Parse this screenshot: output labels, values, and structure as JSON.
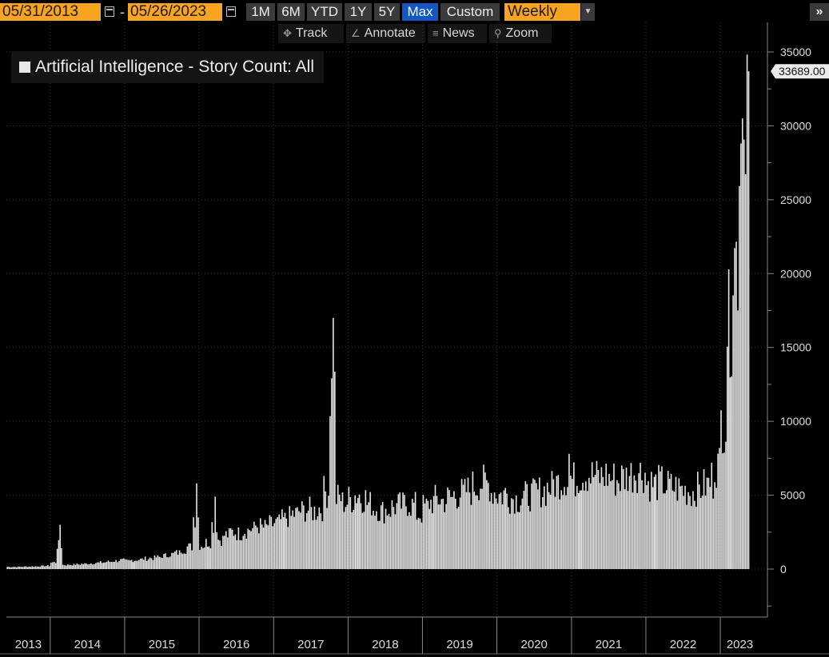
{
  "toolbar": {
    "start_date": "05/31/2013",
    "end_date": "05/26/2023",
    "separator": "-",
    "ranges": [
      "1M",
      "6M",
      "YTD",
      "1Y",
      "5Y",
      "Max",
      "Custom"
    ],
    "active_range": "Max",
    "frequency": "Weekly",
    "more_label": "»"
  },
  "subtoolbar": {
    "track": "Track",
    "annotate": "Annotate",
    "news": "News",
    "zoom": "Zoom"
  },
  "colors": {
    "accent": "#f7a51e",
    "active": "#1356c4",
    "bars": "#e6e6e6",
    "background": "#000000"
  },
  "chart_data": {
    "type": "bar",
    "series_name": "Artificial Intelligence - Story Count: All",
    "frequency": "weekly",
    "ylim": [
      -3000,
      36000
    ],
    "yticks": [
      0,
      5000,
      10000,
      15000,
      20000,
      25000,
      30000,
      35000
    ],
    "last_value_label": "33689.00",
    "years": [
      "2013",
      "2014",
      "2015",
      "2016",
      "2017",
      "2018",
      "2019",
      "2020",
      "2021",
      "2022",
      "2023"
    ],
    "grid": true,
    "legend": "top-left",
    "monthly_values": [
      [
        "2013-06",
        150
      ],
      [
        "2013-07",
        150
      ],
      [
        "2013-08",
        160
      ],
      [
        "2013-09",
        170
      ],
      [
        "2013-10",
        180
      ],
      [
        "2013-11",
        200
      ],
      [
        "2013-12",
        220
      ],
      [
        "2014-01",
        450
      ],
      [
        "2014-02",
        1600
      ],
      [
        "2014-03",
        280
      ],
      [
        "2014-04",
        300
      ],
      [
        "2014-05",
        320
      ],
      [
        "2014-06",
        350
      ],
      [
        "2014-07",
        380
      ],
      [
        "2014-08",
        420
      ],
      [
        "2014-09",
        450
      ],
      [
        "2014-10",
        500
      ],
      [
        "2014-11",
        550
      ],
      [
        "2014-12",
        600
      ],
      [
        "2015-01",
        550
      ],
      [
        "2015-02",
        600
      ],
      [
        "2015-03",
        650
      ],
      [
        "2015-04",
        700
      ],
      [
        "2015-05",
        750
      ],
      [
        "2015-06",
        800
      ],
      [
        "2015-07",
        900
      ],
      [
        "2015-08",
        1000
      ],
      [
        "2015-09",
        1100
      ],
      [
        "2015-10",
        1300
      ],
      [
        "2015-11",
        1500
      ],
      [
        "2015-12",
        3500
      ],
      [
        "2016-01",
        1600
      ],
      [
        "2016-02",
        1800
      ],
      [
        "2016-03",
        3000
      ],
      [
        "2016-04",
        2000
      ],
      [
        "2016-05",
        2300
      ],
      [
        "2016-06",
        2500
      ],
      [
        "2016-07",
        2400
      ],
      [
        "2016-08",
        2600
      ],
      [
        "2016-09",
        2700
      ],
      [
        "2016-10",
        2900
      ],
      [
        "2016-11",
        2800
      ],
      [
        "2016-12",
        3000
      ],
      [
        "2017-01",
        3100
      ],
      [
        "2017-02",
        3300
      ],
      [
        "2017-03",
        3500
      ],
      [
        "2017-04",
        3700
      ],
      [
        "2017-05",
        3900
      ],
      [
        "2017-06",
        4000
      ],
      [
        "2017-07",
        3900
      ],
      [
        "2017-08",
        4100
      ],
      [
        "2017-09",
        5200
      ],
      [
        "2017-10",
        12000
      ],
      [
        "2017-11",
        4800
      ],
      [
        "2017-12",
        4500
      ],
      [
        "2018-01",
        4700
      ],
      [
        "2018-02",
        5000
      ],
      [
        "2018-03",
        4800
      ],
      [
        "2018-04",
        4400
      ],
      [
        "2018-05",
        4100
      ],
      [
        "2018-06",
        3900
      ],
      [
        "2018-07",
        4000
      ],
      [
        "2018-08",
        4200
      ],
      [
        "2018-09",
        4300
      ],
      [
        "2018-10",
        4400
      ],
      [
        "2018-11",
        4300
      ],
      [
        "2018-12",
        3700
      ],
      [
        "2019-01",
        4200
      ],
      [
        "2019-02",
        4500
      ],
      [
        "2019-03",
        4700
      ],
      [
        "2019-04",
        4600
      ],
      [
        "2019-05",
        4800
      ],
      [
        "2019-06",
        5000
      ],
      [
        "2019-07",
        5100
      ],
      [
        "2019-08",
        5300
      ],
      [
        "2019-09",
        5600
      ],
      [
        "2019-10",
        5800
      ],
      [
        "2019-11",
        5700
      ],
      [
        "2019-12",
        5200
      ],
      [
        "2020-01",
        5000
      ],
      [
        "2020-02",
        5100
      ],
      [
        "2020-03",
        4800
      ],
      [
        "2020-04",
        4700
      ],
      [
        "2020-05",
        4900
      ],
      [
        "2020-06",
        5000
      ],
      [
        "2020-07",
        5200
      ],
      [
        "2020-08",
        5300
      ],
      [
        "2020-09",
        5500
      ],
      [
        "2020-10",
        5800
      ],
      [
        "2020-11",
        6000
      ],
      [
        "2020-12",
        6200
      ],
      [
        "2021-01",
        6000
      ],
      [
        "2021-02",
        6300
      ],
      [
        "2021-03",
        6400
      ],
      [
        "2021-04",
        6300
      ],
      [
        "2021-05",
        6200
      ],
      [
        "2021-06",
        6300
      ],
      [
        "2021-07",
        6100
      ],
      [
        "2021-08",
        6000
      ],
      [
        "2021-09",
        6200
      ],
      [
        "2021-10",
        6400
      ],
      [
        "2021-11",
        6600
      ],
      [
        "2021-12",
        6500
      ],
      [
        "2022-01",
        5800
      ],
      [
        "2022-02",
        5700
      ],
      [
        "2022-03",
        5800
      ],
      [
        "2022-04",
        5600
      ],
      [
        "2022-05",
        5500
      ],
      [
        "2022-06",
        5400
      ],
      [
        "2022-07",
        5300
      ],
      [
        "2022-08",
        5200
      ],
      [
        "2022-09",
        5400
      ],
      [
        "2022-10",
        5600
      ],
      [
        "2022-11",
        5800
      ],
      [
        "2022-12",
        7000
      ],
      [
        "2023-01",
        10000
      ],
      [
        "2023-02",
        16500
      ],
      [
        "2023-03",
        21000
      ],
      [
        "2023-04",
        29000
      ],
      [
        "2023-05",
        33689
      ]
    ]
  }
}
